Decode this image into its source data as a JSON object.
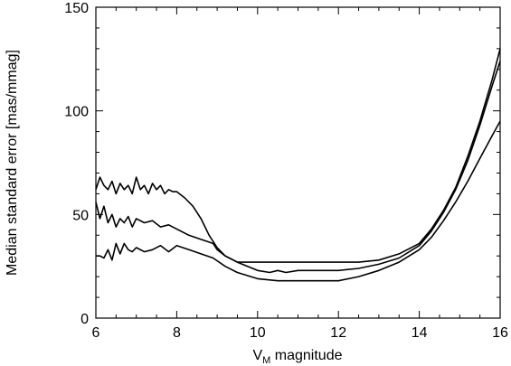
{
  "chart_data": {
    "type": "line",
    "xlabel_main": "V",
    "xlabel_sub": "M",
    "xlabel_rest": " magnitude",
    "ylabel": "Median standard error [mas/mmag]",
    "xlim": [
      6,
      16
    ],
    "ylim": [
      0,
      150
    ],
    "xticks": [
      6,
      8,
      10,
      12,
      14,
      16
    ],
    "yticks": [
      0,
      50,
      100,
      150
    ],
    "grid": false,
    "series": [
      {
        "x": [
          6.0,
          6.1,
          6.2,
          6.3,
          6.4,
          6.5,
          6.6,
          6.7,
          6.8,
          6.9,
          7.0,
          7.1,
          7.2,
          7.3,
          7.4,
          7.5,
          7.6,
          7.7,
          7.8,
          7.9,
          8.0,
          8.2,
          8.4,
          8.6,
          8.8,
          9.0,
          9.2,
          9.4,
          9.5,
          10.0,
          10.5,
          11.0,
          11.5,
          12.0,
          12.5,
          13.0,
          13.5,
          14.0,
          14.3,
          14.6,
          14.9,
          15.2,
          15.5,
          15.8,
          16.0
        ],
        "values": [
          62,
          68,
          64,
          62,
          66,
          60,
          65,
          62,
          64,
          60,
          68,
          62,
          64,
          60,
          65,
          62,
          64,
          60,
          62,
          61,
          61,
          58,
          54,
          48,
          40,
          34,
          30,
          28,
          27,
          27,
          27,
          27,
          27,
          27,
          27,
          28,
          31,
          36,
          43,
          52,
          63,
          78,
          95,
          115,
          130
        ]
      },
      {
        "x": [
          6.0,
          6.1,
          6.2,
          6.3,
          6.4,
          6.5,
          6.6,
          6.7,
          6.8,
          6.9,
          7.0,
          7.2,
          7.4,
          7.6,
          7.8,
          8.0,
          8.3,
          8.6,
          8.9,
          9.0,
          9.2,
          9.5,
          10.0,
          10.3,
          10.5,
          10.7,
          11.0,
          11.5,
          12.0,
          12.5,
          13.0,
          13.5,
          14.0,
          14.3,
          14.6,
          14.9,
          15.2,
          15.5,
          15.8,
          16.0
        ],
        "values": [
          56,
          48,
          54,
          46,
          50,
          44,
          48,
          46,
          49,
          44,
          48,
          46,
          47,
          44,
          45,
          43,
          40,
          38,
          36,
          33,
          30,
          27,
          23,
          22,
          23,
          22,
          23,
          23,
          23,
          24,
          26,
          29,
          35,
          42,
          51,
          62,
          76,
          93,
          112,
          124
        ]
      },
      {
        "x": [
          6.0,
          6.1,
          6.2,
          6.3,
          6.4,
          6.5,
          6.6,
          6.7,
          6.8,
          6.9,
          7.0,
          7.2,
          7.4,
          7.6,
          7.8,
          8.0,
          8.3,
          8.6,
          8.9,
          9.2,
          9.5,
          10.0,
          10.5,
          11.0,
          11.5,
          12.0,
          12.5,
          13.0,
          13.5,
          14.0,
          14.3,
          14.6,
          14.9,
          15.2,
          15.5,
          15.8,
          16.0
        ],
        "values": [
          30,
          30,
          29,
          33,
          28,
          36,
          31,
          36,
          33,
          32,
          34,
          32,
          33,
          35,
          32,
          35,
          33,
          31,
          29,
          25,
          22,
          19,
          18,
          18,
          18,
          18,
          20,
          23,
          27,
          33,
          39,
          47,
          56,
          66,
          77,
          88,
          95
        ]
      }
    ]
  }
}
